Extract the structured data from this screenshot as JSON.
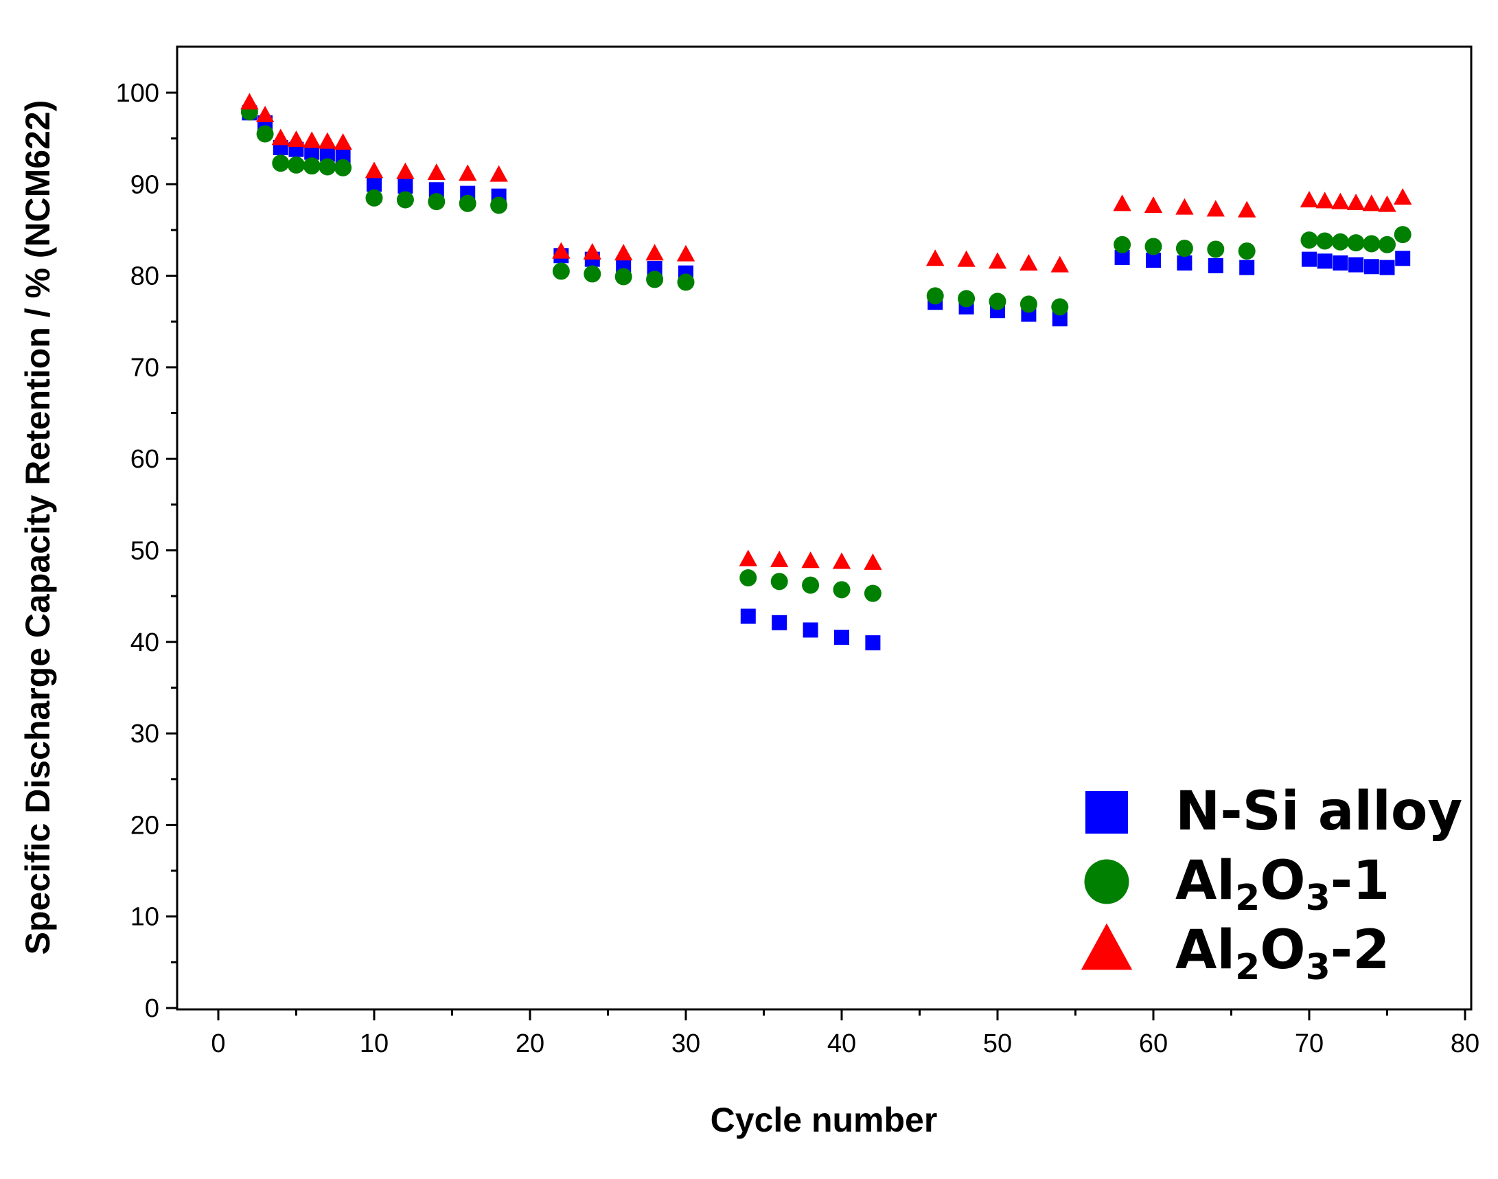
{
  "chart_data": {
    "type": "scatter",
    "title": "",
    "xlabel": "Cycle number",
    "ylabel": "Specific Discharge Capacity Retention / % (NCM622)",
    "xlim": [
      -2.5,
      80
    ],
    "ylim": [
      0,
      100
    ],
    "xticks": [
      0,
      10,
      20,
      30,
      40,
      50,
      60,
      70,
      80
    ],
    "yticks": [
      0,
      10,
      20,
      30,
      40,
      50,
      60,
      70,
      80,
      90,
      100
    ],
    "legend_position": "bottom-right",
    "series": [
      {
        "name": "N-Si alloy",
        "legend_label": {
          "base1": "N-Si alloy",
          "sub1": "",
          "base2": "",
          "sub2": "",
          "suffix": ""
        },
        "marker": "square",
        "color": "#0000ff",
        "x": [
          2,
          3,
          4,
          5,
          6,
          7,
          8,
          10,
          12,
          14,
          16,
          18,
          22,
          24,
          26,
          28,
          30,
          34,
          36,
          38,
          40,
          42,
          46,
          48,
          50,
          52,
          54,
          58,
          60,
          62,
          64,
          66,
          70,
          71,
          72,
          73,
          74,
          75,
          76
        ],
        "y": [
          97.8,
          96.7,
          94.0,
          93.8,
          93.5,
          93.3,
          93.1,
          90.0,
          89.8,
          89.4,
          89.0,
          88.7,
          82.2,
          81.8,
          81.2,
          80.8,
          80.3,
          42.8,
          42.1,
          41.3,
          40.5,
          39.9,
          77.1,
          76.6,
          76.2,
          75.8,
          75.3,
          82.0,
          81.7,
          81.4,
          81.1,
          80.9,
          81.8,
          81.6,
          81.4,
          81.2,
          81.0,
          80.9,
          81.9
        ]
      },
      {
        "name": "Al2O3-1",
        "legend_label": {
          "base1": "Al",
          "sub1": "2",
          "base2": "O",
          "sub2": "3",
          "suffix": "-1"
        },
        "marker": "circle",
        "color": "#008000",
        "x": [
          2,
          3,
          4,
          5,
          6,
          7,
          8,
          10,
          12,
          14,
          16,
          18,
          22,
          24,
          26,
          28,
          30,
          34,
          36,
          38,
          40,
          42,
          46,
          48,
          50,
          52,
          54,
          58,
          60,
          62,
          64,
          66,
          70,
          71,
          72,
          73,
          74,
          75,
          76
        ],
        "y": [
          97.9,
          95.5,
          92.3,
          92.1,
          92.0,
          91.9,
          91.8,
          88.5,
          88.3,
          88.1,
          87.9,
          87.7,
          80.5,
          80.2,
          79.9,
          79.6,
          79.3,
          47.0,
          46.6,
          46.2,
          45.7,
          45.3,
          77.8,
          77.5,
          77.2,
          76.9,
          76.6,
          83.4,
          83.2,
          83.0,
          82.9,
          82.7,
          83.9,
          83.8,
          83.7,
          83.6,
          83.5,
          83.4,
          84.5
        ]
      },
      {
        "name": "Al2O3-2",
        "legend_label": {
          "base1": "Al",
          "sub1": "2",
          "base2": "O",
          "sub2": "3",
          "suffix": "-2"
        },
        "marker": "triangle",
        "color": "#ff0000",
        "x": [
          2,
          3,
          4,
          5,
          6,
          7,
          8,
          10,
          12,
          14,
          16,
          18,
          22,
          24,
          26,
          28,
          30,
          34,
          36,
          38,
          40,
          42,
          46,
          48,
          50,
          52,
          54,
          58,
          60,
          62,
          64,
          66,
          70,
          71,
          72,
          73,
          74,
          75,
          76
        ],
        "y": [
          98.9,
          97.5,
          95.0,
          94.8,
          94.7,
          94.6,
          94.5,
          91.4,
          91.3,
          91.2,
          91.1,
          91.0,
          82.6,
          82.5,
          82.4,
          82.4,
          82.3,
          49.0,
          48.9,
          48.8,
          48.7,
          48.6,
          81.8,
          81.7,
          81.5,
          81.3,
          81.1,
          87.8,
          87.6,
          87.4,
          87.2,
          87.1,
          88.2,
          88.1,
          88.0,
          87.9,
          87.8,
          87.7,
          88.5
        ]
      }
    ]
  }
}
